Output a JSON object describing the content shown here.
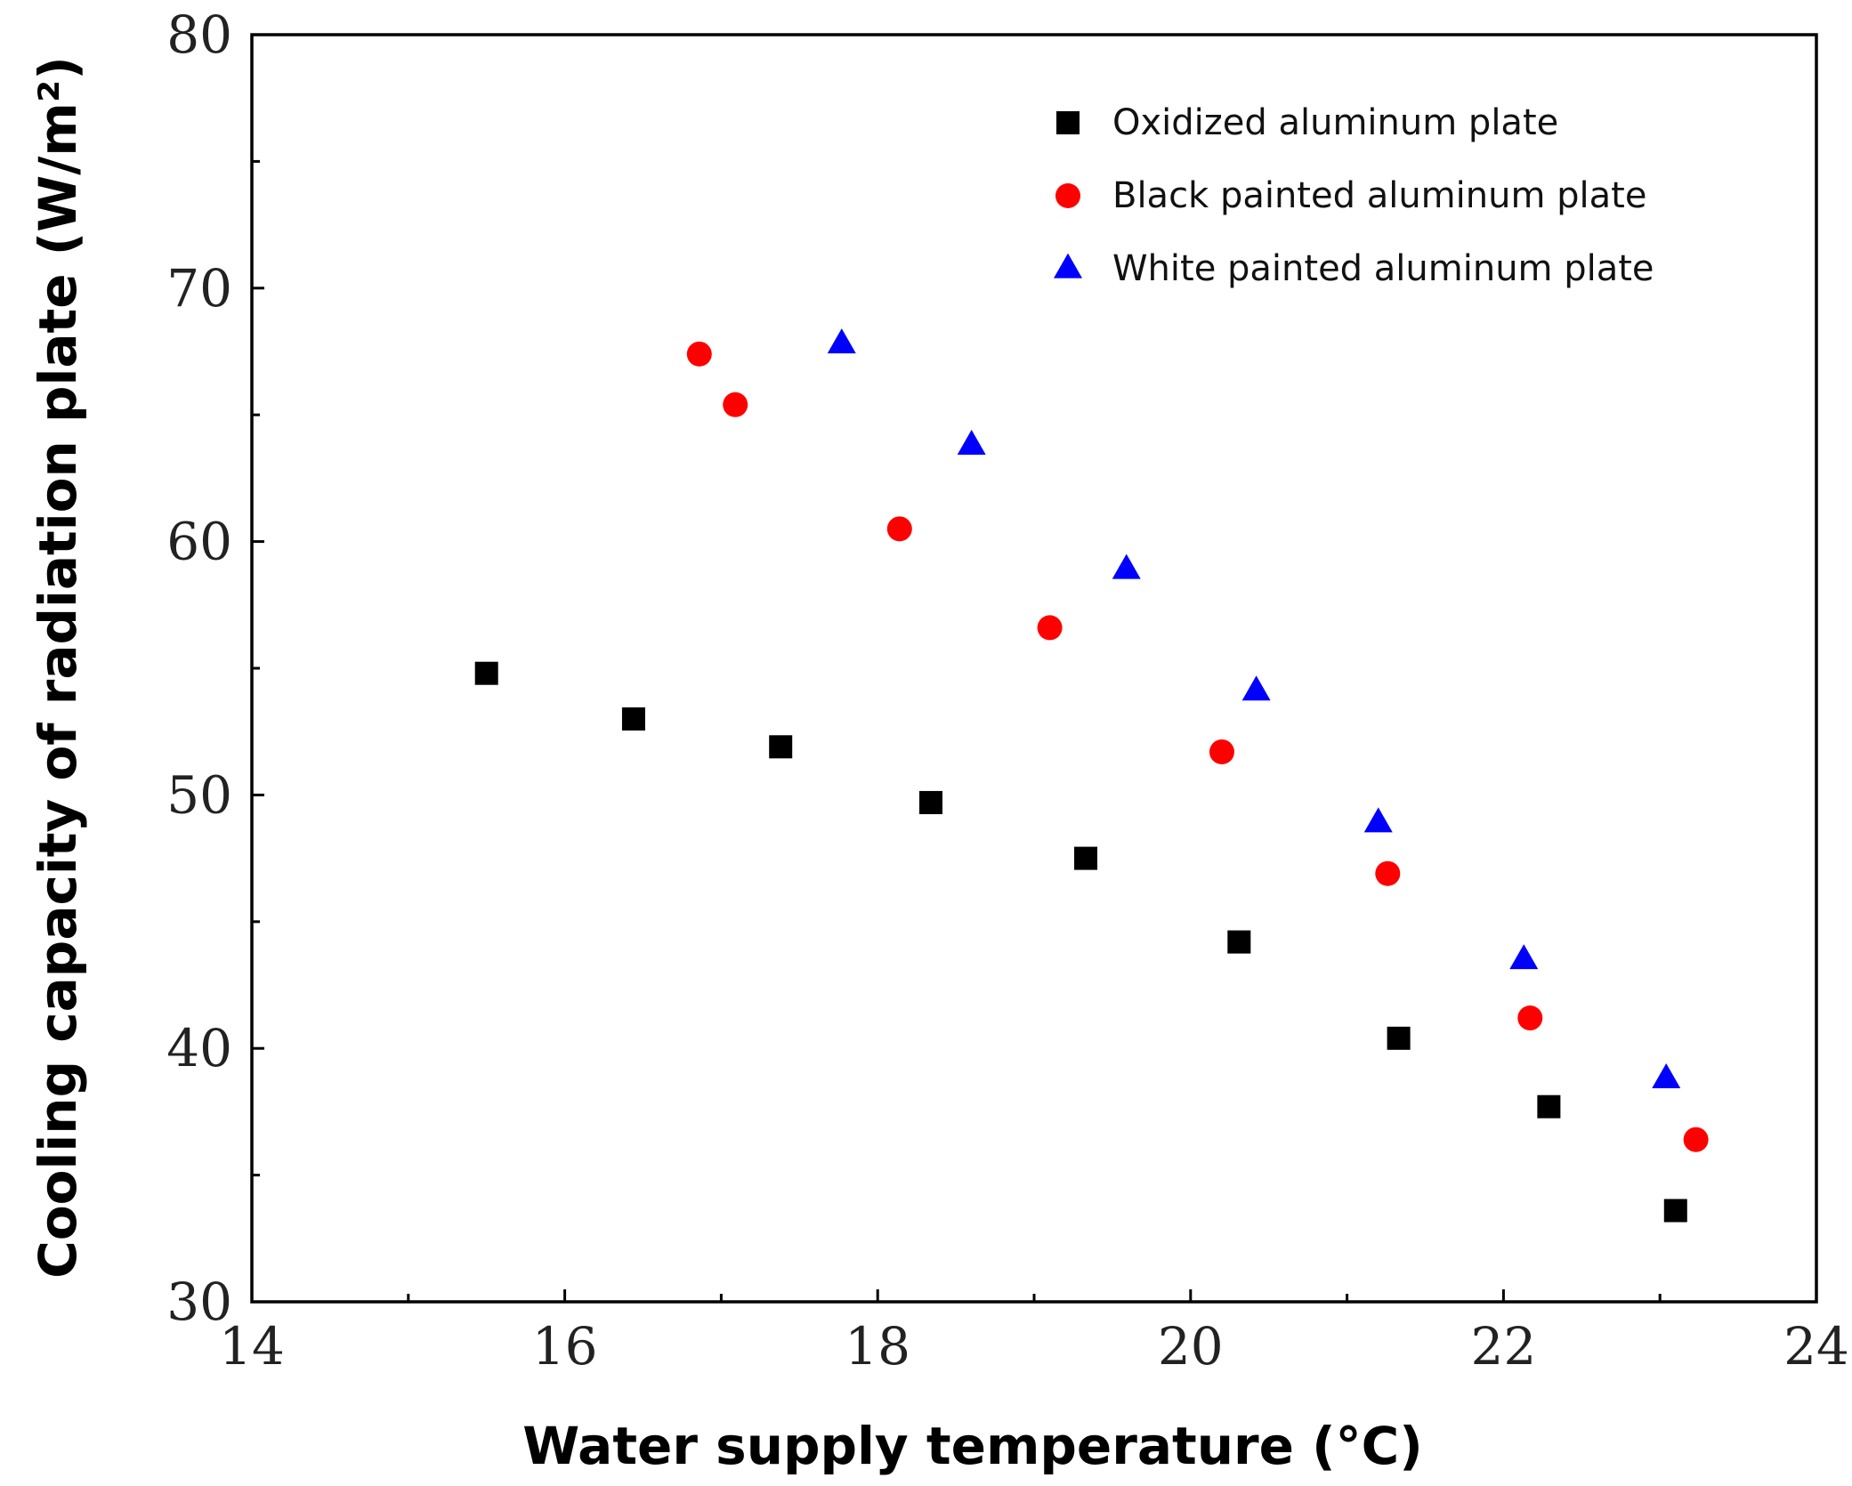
{
  "chart_data": {
    "type": "scatter",
    "title": "",
    "xlabel": "Water supply temperature (°C)",
    "ylabel": "Cooling capacity of radiation plate (W/m²)",
    "xlim": [
      14,
      24
    ],
    "ylim": [
      30,
      80
    ],
    "x_ticks": [
      14,
      16,
      18,
      20,
      22,
      24
    ],
    "x_tick_labels": [
      "14",
      "16",
      "18",
      "20",
      "22",
      "24"
    ],
    "x_minor_ticks": [
      15,
      17,
      19,
      21,
      23
    ],
    "y_ticks": [
      30,
      40,
      50,
      60,
      70,
      80
    ],
    "y_tick_labels": [
      "30",
      "40",
      "50",
      "60",
      "70",
      "80"
    ],
    "y_minor_ticks": [
      35,
      45,
      55,
      65,
      75
    ],
    "legend_position": "top-right",
    "grid": false,
    "series": [
      {
        "name": "Oxidized aluminum plate",
        "marker": "square",
        "color": "#000000",
        "x": [
          15.5,
          16.44,
          17.38,
          18.34,
          19.33,
          20.31,
          21.33,
          22.29,
          23.1
        ],
        "y": [
          54.8,
          53.0,
          51.9,
          49.7,
          47.5,
          44.2,
          40.4,
          37.7,
          33.6
        ]
      },
      {
        "name": "Black painted aluminum plate",
        "marker": "circle",
        "color": "#ff0000",
        "x": [
          16.86,
          17.09,
          18.14,
          19.1,
          20.2,
          21.26,
          22.17,
          23.23
        ],
        "y": [
          67.4,
          65.4,
          60.5,
          56.6,
          51.7,
          46.9,
          41.2,
          36.4
        ]
      },
      {
        "name": "White painted aluminum plate",
        "marker": "triangle",
        "color": "#0000ff",
        "x": [
          17.77,
          18.6,
          19.59,
          20.42,
          21.2,
          22.13,
          23.04
        ],
        "y": [
          67.8,
          63.8,
          58.9,
          54.1,
          48.9,
          43.5,
          38.8
        ]
      }
    ]
  }
}
